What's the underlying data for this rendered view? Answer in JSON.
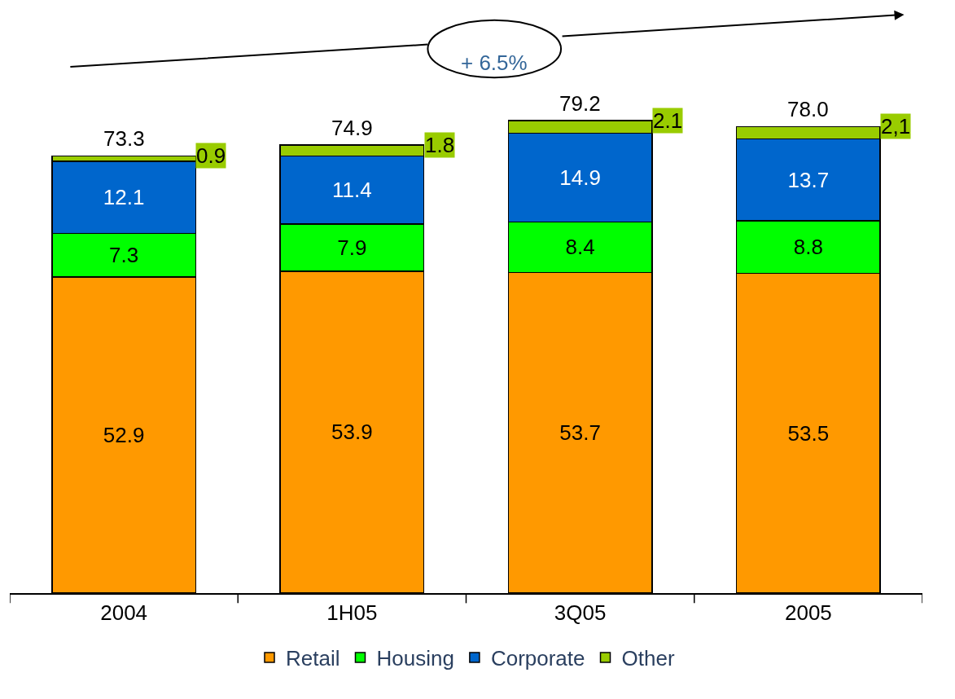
{
  "chart_data": {
    "type": "bar",
    "stacked": true,
    "categories": [
      "2004",
      "1H05",
      "3Q05",
      "2005"
    ],
    "series": [
      {
        "name": "Retail",
        "color": "#ff9900",
        "values": [
          52.9,
          53.9,
          53.7,
          53.5
        ]
      },
      {
        "name": "Housing",
        "color": "#00ff00",
        "values": [
          7.3,
          7.9,
          8.4,
          8.8
        ]
      },
      {
        "name": "Corporate",
        "color": "#0066cc",
        "values": [
          12.1,
          11.4,
          14.9,
          13.7
        ]
      },
      {
        "name": "Other",
        "color": "#99cc00",
        "values": [
          0.9,
          1.8,
          2.1,
          2.1
        ],
        "value_labels": [
          "0.9",
          "1.8",
          "2.1",
          "2,1"
        ]
      }
    ],
    "data_labels": true,
    "totals": [
      "73.3",
      "74.9",
      "79.2",
      "78.0"
    ],
    "tick_labels": "x",
    "legend": "bottom",
    "annotations": [
      "+ 6.5%"
    ]
  }
}
